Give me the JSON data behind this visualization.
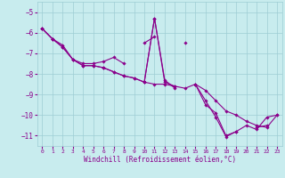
{
  "xlabel": "Windchill (Refroidissement éolien,°C)",
  "bg_color": "#c8ecee",
  "line_color": "#8b008b",
  "grid_color": "#9ecdd4",
  "xlim": [
    -0.5,
    23.5
  ],
  "ylim": [
    -11.5,
    -4.5
  ],
  "yticks": [
    -11,
    -10,
    -9,
    -8,
    -7,
    -6,
    -5
  ],
  "xticks": [
    0,
    1,
    2,
    3,
    4,
    5,
    6,
    7,
    8,
    9,
    10,
    11,
    12,
    13,
    14,
    15,
    16,
    17,
    18,
    19,
    20,
    21,
    22,
    23
  ],
  "series": [
    [
      -5.8,
      -6.3,
      null,
      null,
      null,
      null,
      null,
      null,
      null,
      null,
      -6.5,
      -6.2,
      null,
      null,
      -6.5,
      null,
      null,
      null,
      null,
      null,
      null,
      null,
      null,
      null
    ],
    [
      null,
      -6.3,
      -6.6,
      -7.3,
      -7.5,
      -7.5,
      -7.4,
      -7.2,
      -7.5,
      null,
      null,
      null,
      null,
      null,
      null,
      null,
      null,
      null,
      null,
      null,
      null,
      null,
      null,
      null
    ],
    [
      -5.8,
      -6.3,
      -6.7,
      -7.3,
      -7.6,
      -7.6,
      -7.7,
      -7.9,
      -8.1,
      -8.2,
      -8.4,
      -8.5,
      -8.5,
      -8.6,
      -8.7,
      -8.5,
      -8.8,
      -9.3,
      -9.8,
      -10.0,
      -10.3,
      -10.5,
      -10.6,
      -10.0
    ],
    [
      -5.8,
      -6.3,
      -6.7,
      -7.3,
      -7.6,
      -7.6,
      -7.7,
      -7.9,
      -8.1,
      -8.2,
      -8.4,
      -5.3,
      -8.4,
      -8.6,
      null,
      -8.5,
      -9.3,
      -10.1,
      -11.05,
      -10.8,
      -10.5,
      -10.7,
      -10.1,
      -10.0
    ],
    [
      null,
      null,
      null,
      null,
      null,
      null,
      null,
      null,
      null,
      null,
      -8.4,
      -5.3,
      -8.3,
      -8.7,
      null,
      -8.5,
      -9.5,
      -9.9,
      -11.0,
      -10.8,
      null,
      -10.6,
      -10.5,
      null
    ]
  ]
}
